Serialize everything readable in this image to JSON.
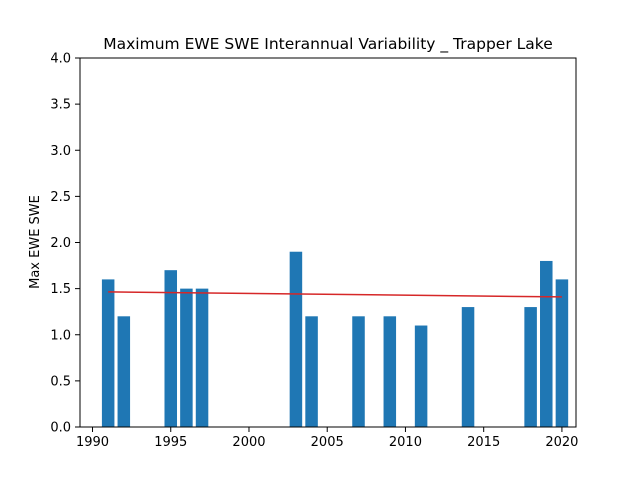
{
  "chart_data": {
    "type": "bar",
    "title": "Maximum EWE SWE Interannual Variability _ Trapper Lake",
    "xlabel": "",
    "ylabel": "Max EWE SWE",
    "xlim": [
      1989.2,
      2020.9
    ],
    "ylim": [
      0,
      4
    ],
    "x_ticks": [
      1990,
      1995,
      2000,
      2005,
      2010,
      2015,
      2020
    ],
    "y_ticks": [
      0.0,
      0.5,
      1.0,
      1.5,
      2.0,
      2.5,
      3.0,
      3.5,
      4.0
    ],
    "x": [
      1991,
      1992,
      1995,
      1996,
      1997,
      2003,
      2004,
      2007,
      2009,
      2011,
      2014,
      2018,
      2019,
      2020
    ],
    "values": [
      1.6,
      1.2,
      1.7,
      1.5,
      1.5,
      1.9,
      1.2,
      1.2,
      1.2,
      1.1,
      1.3,
      1.3,
      1.8,
      1.6
    ],
    "trend_line": {
      "x": [
        1991,
        2020
      ],
      "y": [
        1.465,
        1.41
      ]
    },
    "grid": false,
    "bar_color": "#1f77b4",
    "trend_color": "#d62728"
  }
}
